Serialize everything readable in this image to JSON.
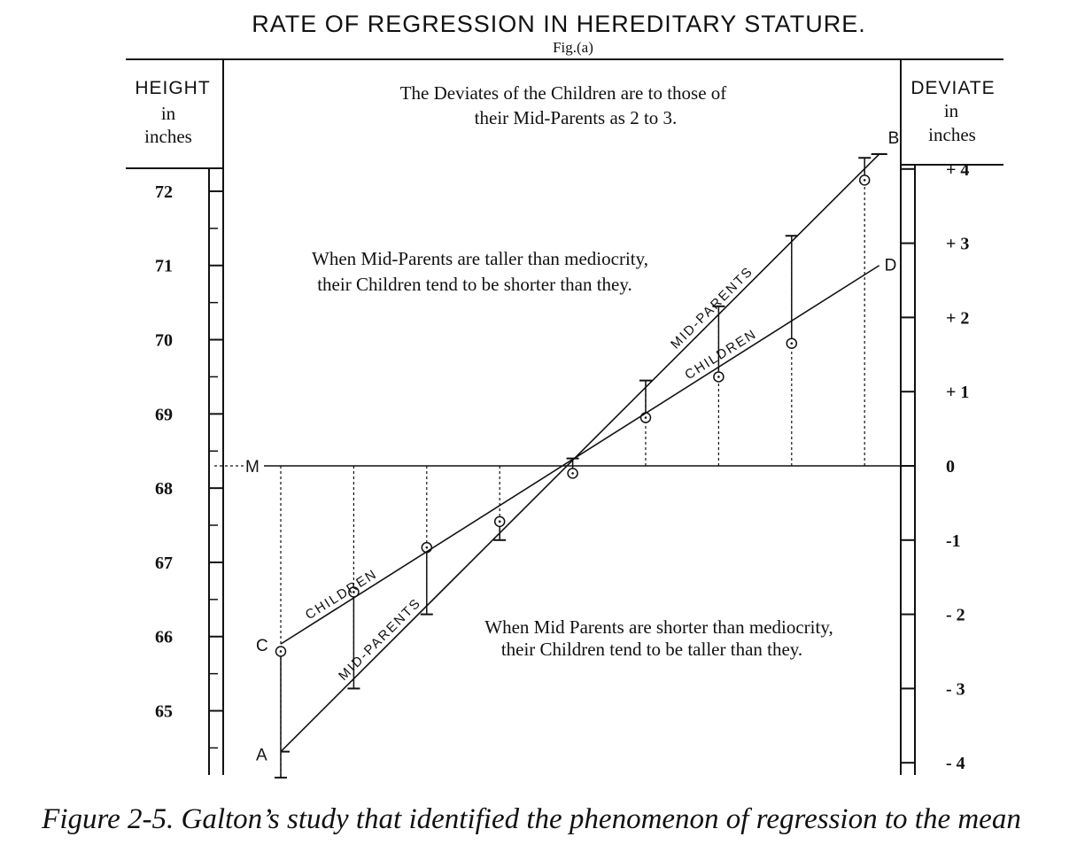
{
  "figure": {
    "title": "RATE OF REGRESSION IN HEREDITARY STATURE.",
    "fig_label": "Fig.(a)",
    "left_header": {
      "line1": "HEIGHT",
      "line2": "in",
      "line3": "inches"
    },
    "right_header": {
      "line1": "DEVIATE",
      "line2": "in",
      "line3": "inches"
    },
    "top_note": {
      "line1": "The Deviates of the Children are to those of",
      "line2": "their Mid-Parents as 2 to 3."
    },
    "upper_note": {
      "line1": "When Mid-Parents are taller than mediocrity,",
      "line2": "their Children tend to be shorter than they."
    },
    "lower_note": {
      "line1": "When Mid Parents are shorter than mediocrity,",
      "line2": "their Children tend to be taller than they."
    },
    "mid_line_label": "M",
    "caption": "Figure 2-5. Galton’s study that identified the phenomenon of regression to the mean"
  },
  "chart_data": {
    "type": "line",
    "title": "RATE OF REGRESSION IN HEREDITARY STATURE.",
    "left_axis": {
      "label": "HEIGHT in inches",
      "ticks": [
        {
          "value": 72,
          "label": "72"
        },
        {
          "value": 71,
          "label": "71"
        },
        {
          "value": 70,
          "label": "70"
        },
        {
          "value": 69,
          "label": "69"
        },
        {
          "value": 68,
          "label": "68"
        },
        {
          "value": 67,
          "label": "67"
        },
        {
          "value": 66,
          "label": "66"
        },
        {
          "value": 65,
          "label": "65"
        }
      ]
    },
    "right_axis": {
      "label": "DEVIATE in inches",
      "ticks": [
        {
          "value": 4,
          "label": "+ 4"
        },
        {
          "value": 3,
          "label": "+ 3"
        },
        {
          "value": 2,
          "label": "+ 2"
        },
        {
          "value": 1,
          "label": "+ 1"
        },
        {
          "value": 0,
          "label": "0"
        },
        {
          "value": -1,
          "label": "-1"
        },
        {
          "value": -2,
          "label": "- 2"
        },
        {
          "value": -3,
          "label": "- 3"
        },
        {
          "value": -4,
          "label": "- 4"
        }
      ]
    },
    "mediocrity_deviate": 0,
    "columns": [
      {
        "parent": -4.2,
        "child": -2.5
      },
      {
        "parent": -3.0,
        "child": -1.7
      },
      {
        "parent": -2.0,
        "child": -1.1
      },
      {
        "parent": -1.0,
        "child": -0.75
      },
      {
        "parent": 0.1,
        "child": -0.1
      },
      {
        "parent": 1.15,
        "child": 0.65
      },
      {
        "parent": 2.15,
        "child": 1.2
      },
      {
        "parent": 3.1,
        "child": 1.65
      },
      {
        "parent": 4.15,
        "child": 3.85
      }
    ],
    "series": [
      {
        "name": "MID-PARENTS",
        "start_label": "A",
        "end_label": "B",
        "x": [
          0,
          8.2
        ],
        "deviate": [
          -3.85,
          4.2
        ]
      },
      {
        "name": "CHILDREN",
        "start_label": "C",
        "end_label": "D",
        "x": [
          0,
          8.2
        ],
        "deviate": [
          -2.4,
          2.7
        ]
      }
    ],
    "series_labels": [
      {
        "series": "MID-PARENTS",
        "text": "MID-PARENTS",
        "at_x": 6.0
      },
      {
        "series": "CHILDREN",
        "text": "CHILDREN",
        "at_x": 6.1
      },
      {
        "series": "CHILDREN",
        "text": "CHILDREN",
        "at_x": 0.9
      },
      {
        "series": "MID-PARENTS",
        "text": "MID-PARENTS",
        "at_x": 1.45
      }
    ]
  }
}
